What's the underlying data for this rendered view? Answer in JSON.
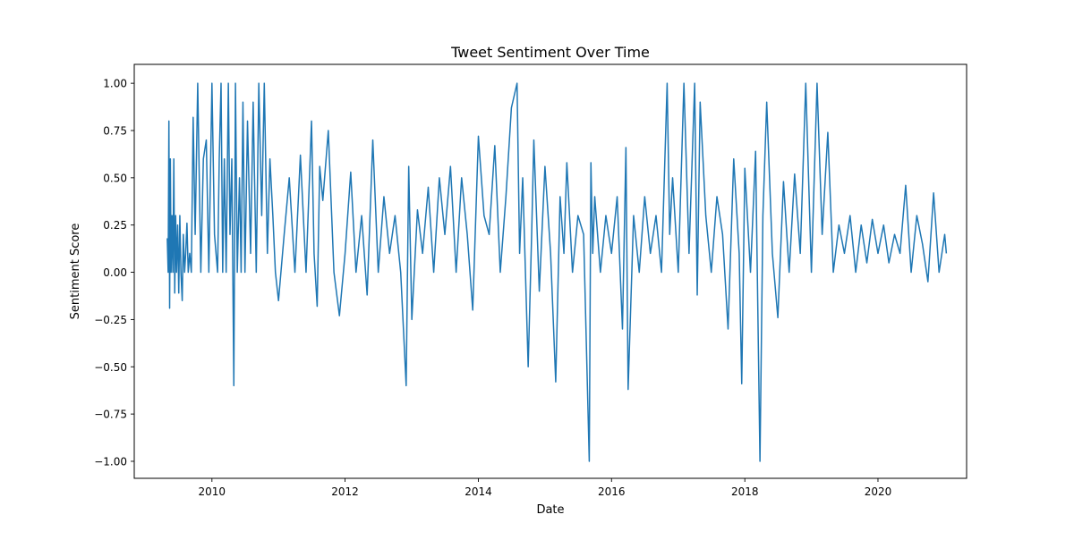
{
  "chart_data": {
    "type": "line",
    "title": "Tweet Sentiment Over Time",
    "xlabel": "Date",
    "ylabel": "Sentiment Score",
    "xlim": [
      "2008-11-01",
      "2021-05-01"
    ],
    "ylim": [
      -1.09,
      1.1
    ],
    "x_ticks": [
      "2010",
      "2012",
      "2014",
      "2016",
      "2018",
      "2020"
    ],
    "y_ticks": [
      "1.00",
      "0.75",
      "0.50",
      "0.25",
      "0.00",
      "−0.25",
      "−0.50",
      "−0.75",
      "−1.00"
    ],
    "grid": false,
    "legend": "none",
    "line_color": "#1f77b4",
    "series": [
      {
        "x": [
          "2009-05-01",
          "2009-05-06",
          "2009-05-10",
          "2009-05-14",
          "2009-05-18",
          "2009-05-22",
          "2009-05-27",
          "2009-06-01",
          "2009-06-06",
          "2009-06-11",
          "2009-06-16",
          "2009-06-21",
          "2009-06-27",
          "2009-07-03",
          "2009-07-09",
          "2009-07-15",
          "2009-07-22",
          "2009-07-28",
          "2009-08-04",
          "2009-08-10",
          "2009-08-17",
          "2009-08-24",
          "2009-09-01",
          "2009-09-10",
          "2009-09-20",
          "2009-10-01",
          "2009-10-15",
          "2009-11-01",
          "2009-11-15",
          "2009-12-01",
          "2009-12-15",
          "2010-01-01",
          "2010-01-15",
          "2010-02-01",
          "2010-02-10",
          "2010-02-20",
          "2010-03-01",
          "2010-03-10",
          "2010-03-20",
          "2010-04-01",
          "2010-04-10",
          "2010-04-20",
          "2010-05-01",
          "2010-05-10",
          "2010-05-20",
          "2010-06-01",
          "2010-06-05",
          "2010-06-10",
          "2010-06-20",
          "2010-07-01",
          "2010-07-15",
          "2010-08-01",
          "2010-08-15",
          "2010-09-01",
          "2010-09-15",
          "2010-10-01",
          "2010-10-15",
          "2010-11-01",
          "2010-11-15",
          "2010-12-01",
          "2010-12-15",
          "2011-01-01",
          "2011-02-01",
          "2011-03-01",
          "2011-04-01",
          "2011-05-01",
          "2011-06-01",
          "2011-07-01",
          "2011-07-15",
          "2011-08-01",
          "2011-08-15",
          "2011-09-01",
          "2011-10-01",
          "2011-11-01",
          "2011-12-01",
          "2012-01-01",
          "2012-02-01",
          "2012-03-01",
          "2012-04-01",
          "2012-05-01",
          "2012-06-01",
          "2012-07-01",
          "2012-08-01",
          "2012-09-01",
          "2012-10-01",
          "2012-11-01",
          "2012-12-01",
          "2012-12-15",
          "2013-01-01",
          "2013-02-01",
          "2013-03-01",
          "2013-04-01",
          "2013-05-01",
          "2013-06-01",
          "2013-07-01",
          "2013-08-01",
          "2013-09-01",
          "2013-10-01",
          "2013-11-01",
          "2013-12-01",
          "2014-01-01",
          "2014-02-01",
          "2014-03-01",
          "2014-04-01",
          "2014-05-01",
          "2014-06-01",
          "2014-07-01",
          "2014-08-01",
          "2014-08-15",
          "2014-09-01",
          "2014-10-01",
          "2014-10-20",
          "2014-11-01",
          "2014-12-01",
          "2015-01-01",
          "2015-02-01",
          "2015-03-01",
          "2015-03-25",
          "2015-04-15",
          "2015-05-01",
          "2015-06-01",
          "2015-07-01",
          "2015-08-01",
          "2015-09-01",
          "2015-09-10",
          "2015-09-20",
          "2015-10-01",
          "2015-11-01",
          "2015-12-01",
          "2016-01-01",
          "2016-02-01",
          "2016-03-01",
          "2016-03-20",
          "2016-04-01",
          "2016-05-01",
          "2016-06-01",
          "2016-07-01",
          "2016-08-01",
          "2016-09-01",
          "2016-10-01",
          "2016-11-01",
          "2016-11-15",
          "2016-12-01",
          "2017-01-01",
          "2017-02-01",
          "2017-03-01",
          "2017-04-01",
          "2017-04-15",
          "2017-05-01",
          "2017-06-01",
          "2017-07-01",
          "2017-08-01",
          "2017-09-01",
          "2017-10-01",
          "2017-11-01",
          "2017-12-01",
          "2017-12-15",
          "2018-01-01",
          "2018-02-01",
          "2018-03-01",
          "2018-03-25",
          "2018-04-10",
          "2018-05-01",
          "2018-06-01",
          "2018-07-01",
          "2018-08-01",
          "2018-09-01",
          "2018-10-01",
          "2018-11-01",
          "2018-12-01",
          "2019-01-01",
          "2019-02-01",
          "2019-03-01",
          "2019-04-01",
          "2019-05-01",
          "2019-06-01",
          "2019-07-01",
          "2019-08-01",
          "2019-09-01",
          "2019-10-01",
          "2019-11-01",
          "2019-12-01",
          "2020-01-01",
          "2020-02-01",
          "2020-03-01",
          "2020-04-01",
          "2020-05-01",
          "2020-06-01",
          "2020-07-01",
          "2020-08-01",
          "2020-09-01",
          "2020-10-01",
          "2020-11-01",
          "2020-12-01",
          "2021-01-01",
          "2021-01-10"
        ],
        "y": [
          0.18,
          0.0,
          0.8,
          -0.19,
          0.6,
          0.0,
          0.3,
          0.0,
          0.6,
          -0.11,
          0.3,
          0.0,
          0.25,
          -0.11,
          0.3,
          0.0,
          -0.15,
          0.2,
          0.0,
          0.1,
          0.26,
          0.0,
          0.1,
          0.0,
          0.82,
          0.2,
          1.0,
          0.0,
          0.6,
          0.7,
          0.0,
          1.0,
          0.2,
          0.0,
          0.6,
          1.0,
          0.0,
          0.6,
          0.0,
          1.0,
          0.2,
          0.6,
          -0.6,
          1.0,
          0.0,
          0.5,
          0.3,
          0.0,
          0.9,
          0.0,
          0.8,
          0.1,
          0.9,
          0.0,
          1.0,
          0.3,
          1.0,
          0.1,
          0.6,
          0.3,
          0.0,
          -0.15,
          0.2,
          0.5,
          0.0,
          0.62,
          0.0,
          0.8,
          0.1,
          -0.18,
          0.56,
          0.38,
          0.75,
          0.0,
          -0.23,
          0.1,
          0.53,
          0.0,
          0.3,
          -0.12,
          0.7,
          0.0,
          0.4,
          0.1,
          0.3,
          0.0,
          -0.6,
          0.56,
          -0.25,
          0.33,
          0.1,
          0.45,
          0.0,
          0.5,
          0.2,
          0.56,
          0.0,
          0.5,
          0.2,
          -0.2,
          0.72,
          0.3,
          0.2,
          0.67,
          0.0,
          0.4,
          0.87,
          1.0,
          0.1,
          0.5,
          -0.5,
          0.2,
          0.7,
          -0.1,
          0.56,
          0.1,
          -0.58,
          0.4,
          0.1,
          0.58,
          0.0,
          0.3,
          0.2,
          -1.0,
          0.58,
          0.1,
          0.4,
          0.0,
          0.3,
          0.1,
          0.4,
          -0.3,
          0.66,
          -0.62,
          0.3,
          0.0,
          0.4,
          0.1,
          0.3,
          0.0,
          1.0,
          0.2,
          0.5,
          0.0,
          1.0,
          0.1,
          1.0,
          -0.12,
          0.9,
          0.3,
          0.0,
          0.4,
          0.2,
          -0.3,
          0.6,
          0.1,
          -0.59,
          0.55,
          0.0,
          0.64,
          -1.0,
          0.3,
          0.9,
          0.1,
          -0.24,
          0.48,
          0.0,
          0.52,
          0.1,
          1.0,
          0.0,
          1.0,
          0.2,
          0.74,
          0.0,
          0.25,
          0.1,
          0.3,
          0.0,
          0.25,
          0.05,
          0.28,
          0.1,
          0.25,
          0.05,
          0.2,
          0.1,
          0.46,
          0.0,
          0.3,
          0.15,
          -0.05,
          0.42,
          0.0,
          0.2,
          0.1
        ]
      }
    ]
  }
}
